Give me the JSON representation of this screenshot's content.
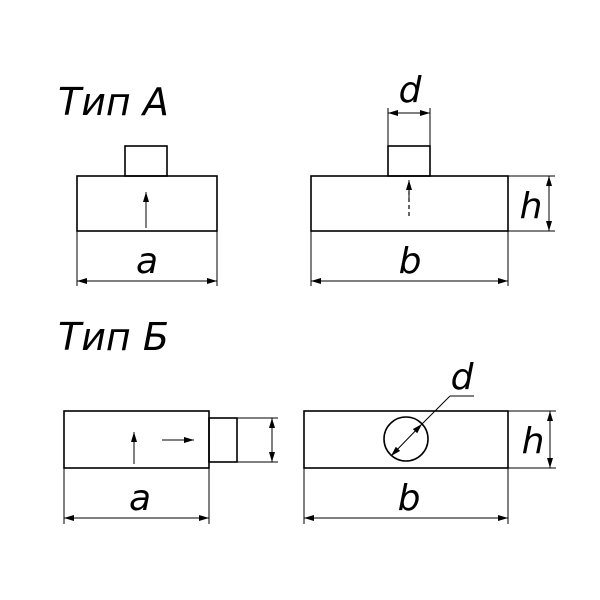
{
  "types": {
    "type_a": {
      "title": "Тип А"
    },
    "type_b": {
      "title": "Тип Б"
    }
  },
  "dimensions": {
    "a": "a",
    "b": "b",
    "d": "d",
    "h": "h"
  }
}
